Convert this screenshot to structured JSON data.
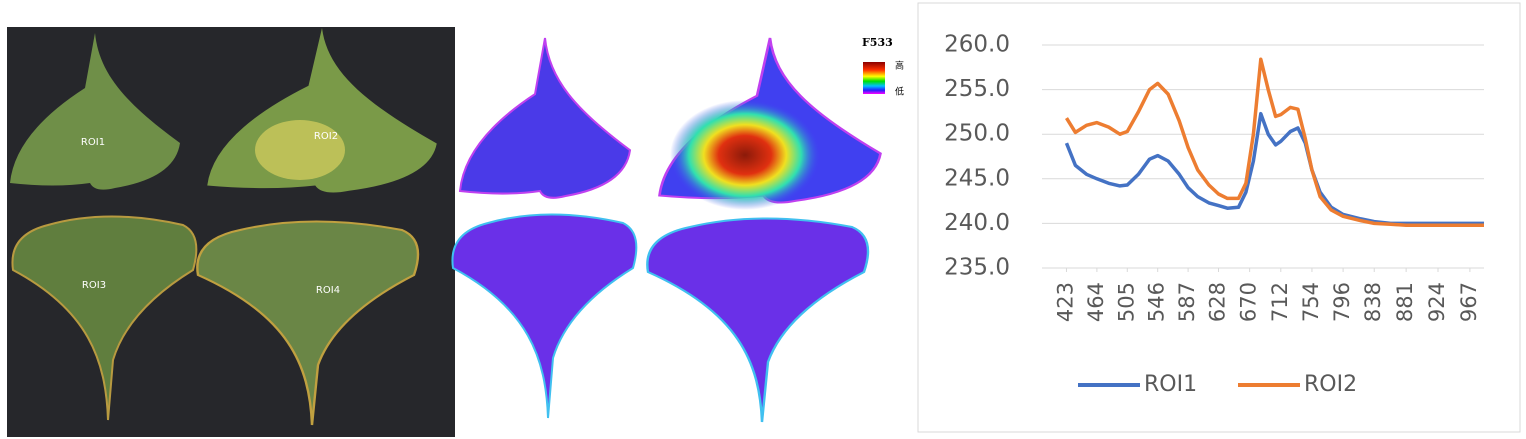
{
  "photo": {
    "labels": [
      "ROI1",
      "ROI2",
      "ROI3",
      "ROI4"
    ]
  },
  "fluorescence": {
    "title": "F533",
    "high": "高",
    "low": "低"
  },
  "chart_data": {
    "type": "line",
    "x": [
      423,
      435,
      450,
      464,
      480,
      495,
      505,
      520,
      535,
      546,
      560,
      575,
      587,
      600,
      615,
      628,
      640,
      655,
      665,
      675,
      685,
      695,
      705,
      712,
      725,
      735,
      745,
      754,
      765,
      780,
      796,
      820,
      838,
      860,
      881,
      924,
      967,
      986
    ],
    "series": [
      {
        "name": "ROI1",
        "color": "#4472c4",
        "values": [
          249,
          246.5,
          245.5,
          245,
          244.5,
          244.2,
          244.3,
          245.5,
          247.2,
          247.6,
          247,
          245.5,
          244,
          243,
          242.3,
          242,
          241.7,
          241.8,
          243.5,
          247,
          252.3,
          250,
          248.8,
          249.2,
          250.3,
          250.7,
          249,
          246,
          243.5,
          241.8,
          241,
          240.5,
          240.2,
          240,
          240,
          240,
          240,
          240
        ]
      },
      {
        "name": "ROI2",
        "color": "#ed7d31",
        "values": [
          251.8,
          250.2,
          251,
          251.3,
          250.8,
          250,
          250.3,
          252.5,
          255,
          255.7,
          254.5,
          251.5,
          248.5,
          246,
          244.3,
          243.3,
          242.8,
          242.8,
          244.5,
          250,
          258.4,
          255,
          252,
          252.2,
          253,
          252.8,
          249.5,
          246,
          243,
          241.5,
          240.8,
          240.3,
          240,
          239.9,
          239.8,
          239.8,
          239.8,
          239.8
        ]
      }
    ],
    "xlim": [
      390,
      986
    ],
    "xticks": [
      423,
      464,
      505,
      546,
      587,
      628,
      670,
      712,
      754,
      796,
      838,
      881,
      924,
      967
    ],
    "ylim": [
      235,
      260
    ],
    "yticks": [
      {
        "value": 235,
        "label": "235.0"
      },
      {
        "value": 240,
        "label": "240.0"
      },
      {
        "value": 245,
        "label": "245.0"
      },
      {
        "value": 250,
        "label": "250.0"
      },
      {
        "value": 255,
        "label": "255.0"
      },
      {
        "value": 260,
        "label": "260.0"
      }
    ],
    "grid": true,
    "legend": "bottom"
  }
}
